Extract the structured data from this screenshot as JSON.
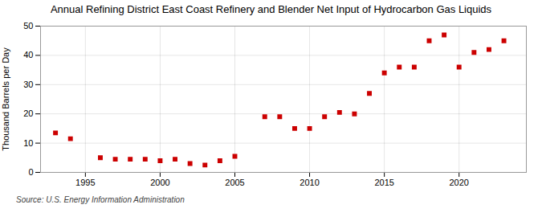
{
  "chart_data": {
    "type": "scatter",
    "title": "Annual Refining District East Coast Refinery and Blender Net Input of Hydrocarbon Gas Liquids",
    "ylabel": "Thousand Barrels per Day",
    "source": "Source: U.S. Energy Information Administration",
    "x": [
      1993,
      1994,
      1996,
      1997,
      1998,
      1999,
      2000,
      2001,
      2002,
      2003,
      2004,
      2005,
      2007,
      2008,
      2009,
      2010,
      2011,
      2012,
      2013,
      2014,
      2015,
      2016,
      2017,
      2018,
      2019,
      2020,
      2021,
      2022,
      2023
    ],
    "values": [
      13.5,
      11.5,
      5.0,
      4.5,
      4.5,
      4.5,
      4.0,
      4.5,
      3.0,
      2.5,
      4.0,
      5.5,
      19.0,
      19.0,
      15.0,
      15.0,
      19.0,
      20.5,
      20.0,
      27.0,
      34.0,
      36.0,
      36.0,
      45.0,
      47.0,
      36.0,
      41.0,
      42.0,
      45.0
    ],
    "color": "#cc0000",
    "marker": "square",
    "xlim": [
      1992,
      2024.5
    ],
    "ylim": [
      0,
      50
    ],
    "xticks": [
      1995,
      2000,
      2005,
      2010,
      2015,
      2020
    ],
    "yticks": [
      0,
      10,
      20,
      30,
      40,
      50
    ],
    "grid": true
  }
}
